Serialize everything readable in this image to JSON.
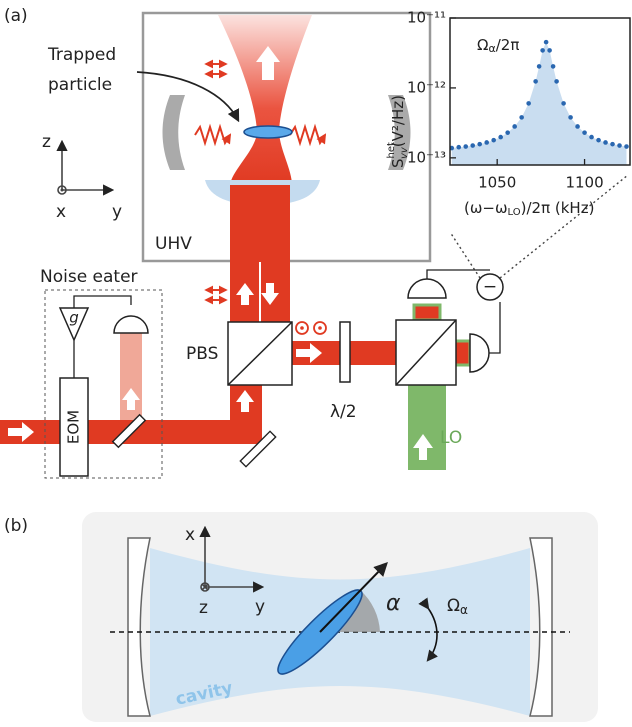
{
  "panel_labels": [
    "(a)",
    "(b)"
  ],
  "panel_a": {
    "particle_label": [
      "Trapped",
      "particle"
    ],
    "axes": {
      "z": "z",
      "x": "x",
      "y": "y"
    },
    "chamber": "UHV",
    "noise_eater": "Noise eater",
    "gain": "g",
    "modulator": "EOM",
    "splitter": "PBS",
    "waveplate": "λ/2",
    "local_oscillator": "LO",
    "subtractor": "−"
  },
  "panel_b": {
    "axes": {
      "x": "x",
      "z": "z",
      "y": "y"
    },
    "angle": "α",
    "rotation": {
      "symbol": "Ω",
      "sub": "α"
    },
    "cavity": "cavity"
  },
  "chart_data": {
    "type": "scatter",
    "annotation": {
      "symbol": "Ω",
      "sub": "α",
      "rest": "/2π"
    },
    "xlabel": {
      "pre": "(ω−ω",
      "sub": "LO",
      "post": ")/2π (kHz)"
    },
    "ylabel": {
      "symbol": "S",
      "sup": "het",
      "sub": "vv",
      "unit": "(V²/Hz)"
    },
    "x": [
      1024,
      1028,
      1032,
      1036,
      1040,
      1044,
      1048,
      1052,
      1056,
      1060,
      1064,
      1068,
      1072,
      1074,
      1076,
      1078,
      1080,
      1082,
      1084,
      1088,
      1092,
      1096,
      1100,
      1104,
      1108,
      1112,
      1116,
      1120,
      1124
    ],
    "values": [
      1.38e-13,
      1.42e-13,
      1.45e-13,
      1.5e-13,
      1.57e-13,
      1.66e-13,
      1.79e-13,
      1.98e-13,
      2.29e-13,
      2.81e-13,
      3.79e-13,
      6e-13,
      1.24e-12,
      2.03e-12,
      3.44e-12,
      4.52e-12,
      3.44e-12,
      2.03e-12,
      1.24e-12,
      6e-13,
      3.79e-13,
      2.81e-13,
      2.29e-13,
      1.98e-13,
      1.79e-13,
      1.66e-13,
      1.57e-13,
      1.5e-13,
      1.45e-13
    ],
    "color": "#2a67b0",
    "fill_color": "#c9ddf0",
    "xlim": [
      1023,
      1126
    ],
    "ylim": [
      7.9e-14,
      1e-11
    ],
    "log_y": true,
    "xticks": [
      1050,
      1100
    ],
    "yticks": [
      {
        "value": 1e-13,
        "label": "10⁻¹³"
      },
      {
        "value": 1e-12,
        "label": "10⁻¹²"
      },
      {
        "value": 1e-11,
        "label": "10⁻¹¹"
      }
    ]
  }
}
